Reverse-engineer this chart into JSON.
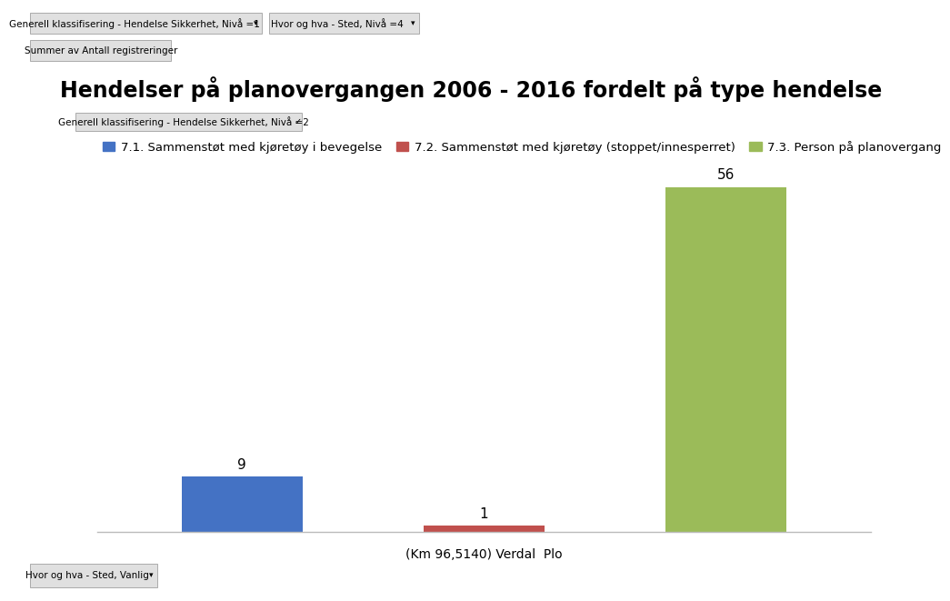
{
  "title": "Hendelser på planovergangen 2006 - 2016 fordelt på type hendelse",
  "values": [
    9,
    1,
    56
  ],
  "bar_colors": [
    "#4472C4",
    "#C0504D",
    "#9BBB59"
  ],
  "bar_width": 0.5,
  "xlabel": "(Km 96,5140) Verdal  Plo",
  "ylim": [
    0,
    62
  ],
  "legend_labels": [
    "7.1. Sammenstøt med kjøretøy i bevegelse",
    "7.2. Sammenstøt med kjøretøy (stoppet/innesperret)",
    "7.3. Person på planovergang"
  ],
  "legend_colors": [
    "#4472C4",
    "#C0504D",
    "#9BBB59"
  ],
  "top_bar_labels": [
    "9",
    "1",
    "56"
  ],
  "ui_top_left": "Generell klassifisering - Hendelse Sikkerhet, Nivå =1",
  "ui_top_right": "Hvor og hva - Sted, Nivå =4",
  "ui_sum_btn": "Summer av Antall registreringer",
  "ui_filter": "Generell klassifisering - Hendelse Sikkerhet, Nivå =2",
  "ui_bottom": "Hvor og hva - Sted, Vanlig",
  "background_color": "#FFFFFF",
  "ui_bg_color": "#F0F0F0",
  "ui_btn_color": "#E0E0E0",
  "ui_border_color": "#AAAAAA",
  "title_fontsize": 17,
  "axis_label_fontsize": 10,
  "bar_label_fontsize": 11,
  "legend_fontsize": 9.5,
  "ui_fontsize": 8
}
